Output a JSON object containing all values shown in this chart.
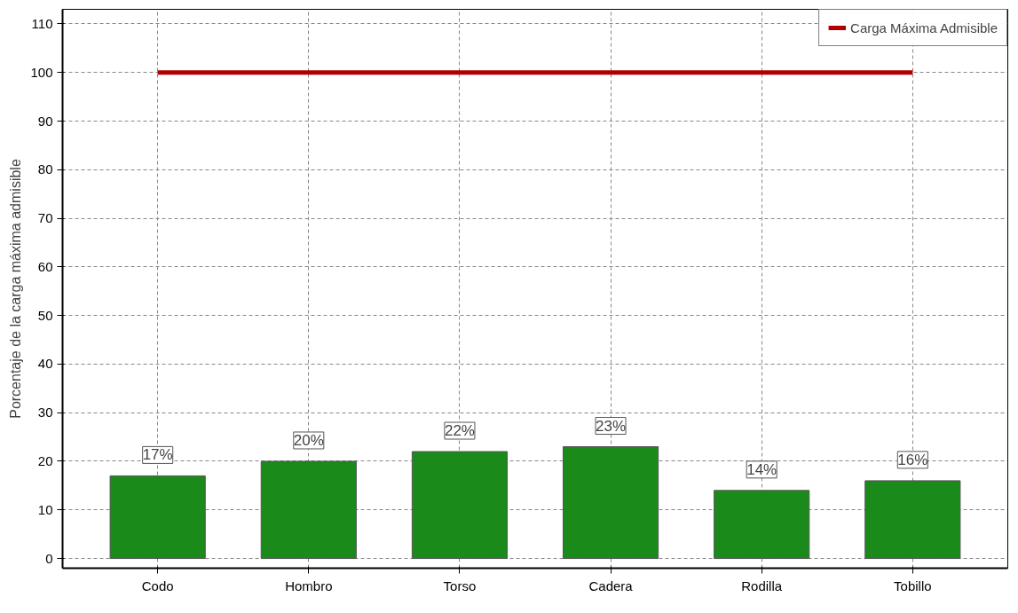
{
  "chart_data": {
    "type": "bar",
    "ylabel": "Porcentaje de la carga máxima admisible",
    "categories": [
      "Codo",
      "Hombro",
      "Torso",
      "Cadera",
      "Rodilla",
      "Tobillo"
    ],
    "series": [
      {
        "color": "#1a8a1a",
        "values": [
          17,
          20,
          22,
          23,
          14,
          16
        ],
        "value_labels": [
          "17%",
          "20%",
          "22%",
          "23%",
          "14%",
          "16%"
        ]
      },
      {
        "type": "line",
        "name": "Carga Máxima Admisible",
        "color": "#b00000",
        "values": [
          100,
          100,
          100,
          100,
          100,
          100
        ]
      }
    ],
    "ylim": [
      -2,
      113
    ],
    "yticks": [
      0,
      10,
      20,
      30,
      40,
      50,
      60,
      70,
      80,
      90,
      100,
      110
    ],
    "grid": true,
    "legend": "top right",
    "line_style": "solid"
  }
}
